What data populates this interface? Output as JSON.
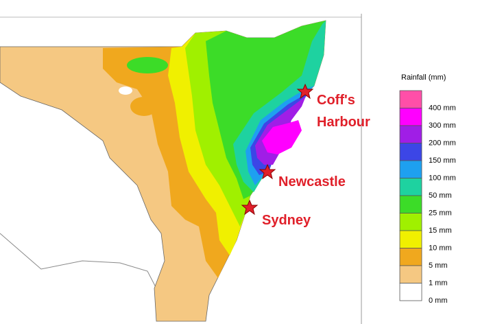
{
  "legend": {
    "title": "Rainfall (mm)",
    "items": [
      {
        "label": "400 mm",
        "color": "#ff4fa8"
      },
      {
        "label": "300 mm",
        "color": "#ff00ff"
      },
      {
        "label": "200 mm",
        "color": "#a01ee6"
      },
      {
        "label": "150 mm",
        "color": "#3c46e6"
      },
      {
        "label": "100 mm",
        "color": "#1ea0f0"
      },
      {
        "label": "50 mm",
        "color": "#1ed2a0"
      },
      {
        "label": "25 mm",
        "color": "#3cdc28"
      },
      {
        "label": "15 mm",
        "color": "#a0f000"
      },
      {
        "label": "10 mm",
        "color": "#f0f000"
      },
      {
        "label": "5 mm",
        "color": "#f0a81e"
      },
      {
        "label": "1 mm",
        "color": "#f5c882"
      },
      {
        "label": "0 mm",
        "color": "#ffffff"
      }
    ]
  },
  "places": [
    {
      "lines": [
        "Coff's",
        "Harbour"
      ]
    },
    {
      "lines": [
        "Newcastle"
      ]
    },
    {
      "lines": [
        "Sydney"
      ]
    }
  ]
}
